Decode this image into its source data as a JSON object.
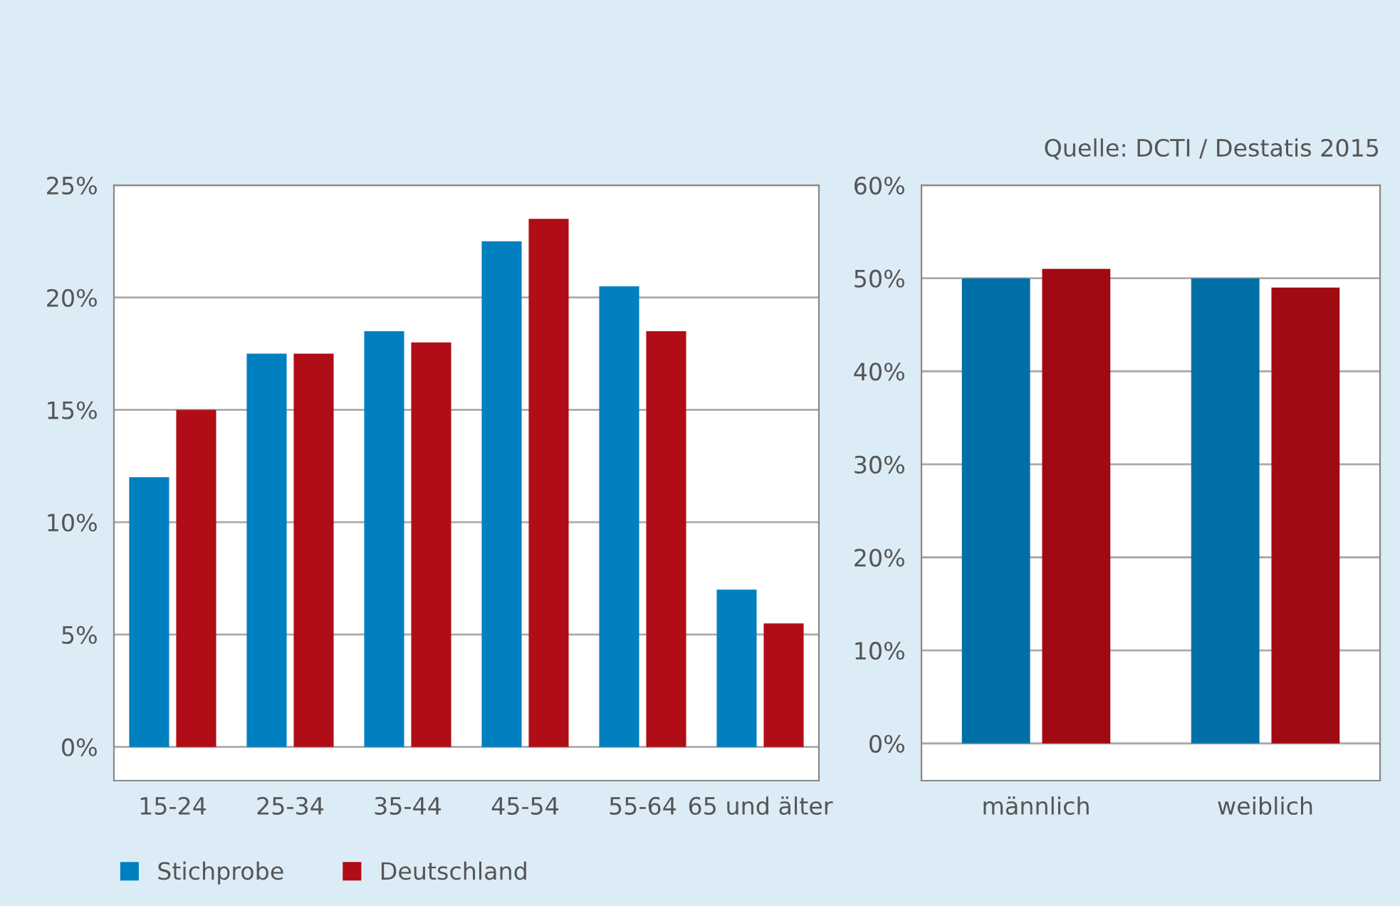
{
  "chart_data": [
    {
      "type": "bar",
      "categories": [
        "15-24",
        "25-34",
        "35-44",
        "45-54",
        "55-64",
        "65 und älter"
      ],
      "series": [
        {
          "name": "Stichprobe",
          "color": "#0080c0",
          "values": [
            12,
            17.5,
            18.5,
            22.5,
            20.5,
            7
          ]
        },
        {
          "name": "Deutschland",
          "color": "#b00d16",
          "values": [
            15,
            17.5,
            18,
            23.5,
            18.5,
            5.5
          ]
        }
      ],
      "ylim": [
        -1.5,
        25
      ],
      "yticks": [
        {
          "value": 0,
          "label": "0%"
        },
        {
          "value": 5,
          "label": "5%"
        },
        {
          "value": 10,
          "label": "10%"
        },
        {
          "value": 15,
          "label": "15%"
        },
        {
          "value": 20,
          "label": "20%"
        },
        {
          "value": 25,
          "label": "25%"
        }
      ],
      "grid": "y",
      "legend": "bottom left"
    },
    {
      "type": "bar",
      "categories": [
        "männlich",
        "weiblich"
      ],
      "series": [
        {
          "color": "#006fa6",
          "values": [
            50,
            50
          ]
        },
        {
          "color": "#a00a12",
          "values": [
            51,
            49
          ]
        }
      ],
      "ylim": [
        -4,
        60
      ],
      "yticks": [
        {
          "value": 0,
          "label": "0%"
        },
        {
          "value": 10,
          "label": "10%"
        },
        {
          "value": 20,
          "label": "20%"
        },
        {
          "value": 30,
          "label": "30%"
        },
        {
          "value": 40,
          "label": "40%"
        },
        {
          "value": 50,
          "label": "50%"
        },
        {
          "value": 60,
          "label": "60%"
        }
      ],
      "grid": "y",
      "annotations": [
        "Quelle: DCTI / Destatis 2015"
      ]
    }
  ]
}
